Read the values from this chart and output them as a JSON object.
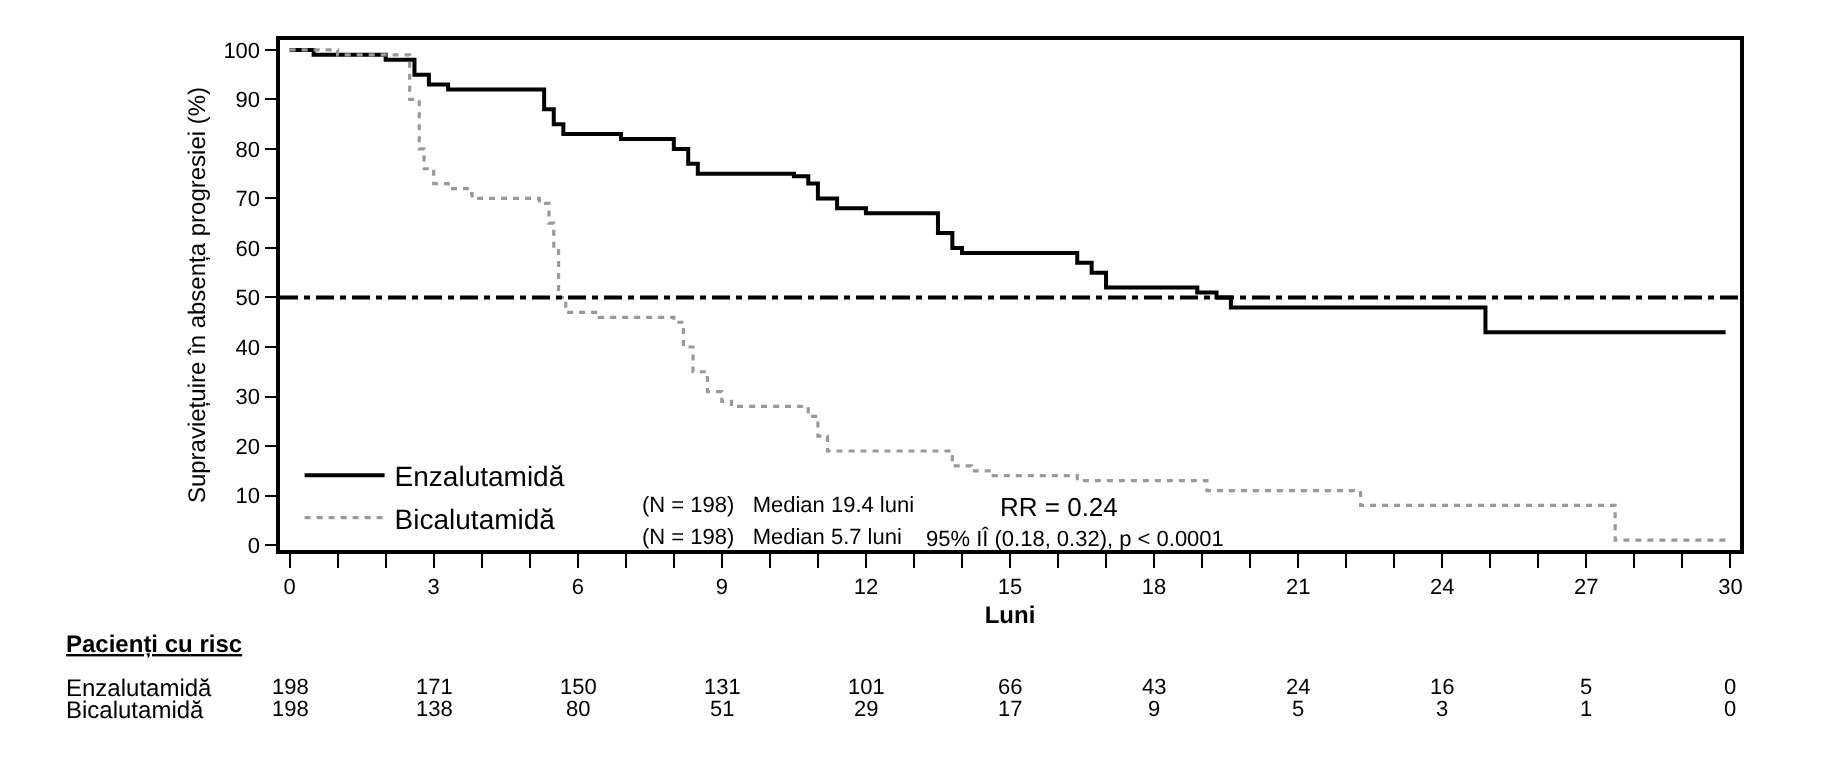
{
  "chart_data": {
    "type": "step",
    "xlabel": "Luni",
    "ylabel": "Supraviețuire în absența progresiei (%)",
    "xlim": [
      -0.2,
      30.2
    ],
    "ylim": [
      -1,
      102
    ],
    "xticks": [
      0,
      {
        "value": 1,
        "label": null
      },
      {
        "value": 2,
        "label": null
      },
      3,
      {
        "value": 4,
        "label": null
      },
      {
        "value": 5,
        "label": null
      },
      6,
      {
        "value": 7,
        "label": null
      },
      {
        "value": 8,
        "label": null
      },
      9,
      {
        "value": 10,
        "label": null
      },
      {
        "value": 11,
        "label": null
      },
      12,
      {
        "value": 13,
        "label": null
      },
      {
        "value": 14,
        "label": null
      },
      15,
      {
        "value": 16,
        "label": null
      },
      {
        "value": 17,
        "label": null
      },
      18,
      {
        "value": 19,
        "label": null
      },
      {
        "value": 20,
        "label": null
      },
      21,
      {
        "value": 22,
        "label": null
      },
      {
        "value": 23,
        "label": null
      },
      24,
      {
        "value": 25,
        "label": null
      },
      {
        "value": 26,
        "label": null
      },
      27,
      {
        "value": 28,
        "label": null
      },
      {
        "value": 29,
        "label": null
      },
      30
    ],
    "yticks": [
      0,
      10,
      20,
      30,
      40,
      50,
      60,
      70,
      80,
      90,
      100
    ],
    "legend": "bottom left",
    "marker": "none",
    "series": [
      {
        "name": "Enzalutamidă",
        "color": "#000000",
        "line_style": "solid",
        "x": [
          0,
          0.5,
          2.0,
          2.6,
          2.9,
          3.3,
          5.3,
          5.5,
          5.7,
          6.9,
          8.0,
          8.3,
          8.5,
          10.5,
          10.8,
          11.0,
          11.4,
          12.0,
          13.5,
          13.8,
          14.0,
          16.4,
          16.7,
          17.0,
          18.9,
          19.3,
          19.6,
          24.9,
          29.9
        ],
        "values": [
          100,
          99,
          98,
          95,
          93,
          92,
          88,
          85,
          83,
          82,
          80,
          77,
          75,
          74.5,
          73,
          70,
          68,
          67,
          63,
          60,
          59,
          57,
          55,
          52,
          51,
          50,
          48,
          43,
          43
        ]
      },
      {
        "name": "Bicalutamidă",
        "color": "#999999",
        "line_style": "dotted",
        "x": [
          0,
          1.0,
          2.5,
          2.7,
          2.8,
          3.0,
          3.3,
          3.7,
          3.8,
          5.2,
          5.4,
          5.5,
          5.6,
          5.75,
          6.45,
          8.0,
          8.2,
          8.4,
          8.7,
          9.0,
          9.2,
          10.8,
          11.0,
          11.2,
          13.8,
          14.2,
          14.6,
          16.4,
          19.1,
          22.3,
          27.6,
          29.9
        ],
        "values": [
          100,
          99,
          90,
          80,
          76,
          73,
          72,
          71,
          70,
          69,
          65,
          60,
          50,
          47,
          46,
          45,
          40,
          35,
          31,
          29,
          28,
          26,
          22,
          19,
          16,
          15,
          14,
          13,
          11,
          8,
          1,
          1
        ]
      }
    ],
    "ref_lines": [
      {
        "axis": "y",
        "value": 50,
        "color": "#000000",
        "line_style": "dashdot"
      }
    ],
    "annotations": [
      "(N = 198)   Median 19.4 luni",
      "(N = 198)   Median 5.7 luni",
      "RR = 0.24",
      "95% IÎ (0.18, 0.32), p < 0.0001",
      "Pacienți cu risc",
      "Enzalutamidă",
      "Bicalutamidă",
      "198",
      "171",
      "150",
      "131",
      "101",
      "66",
      "43",
      "24",
      "16",
      "5",
      "0",
      "198",
      "138",
      "80",
      "51",
      "29",
      "17",
      "9",
      "5",
      "3",
      "1",
      "0"
    ]
  }
}
